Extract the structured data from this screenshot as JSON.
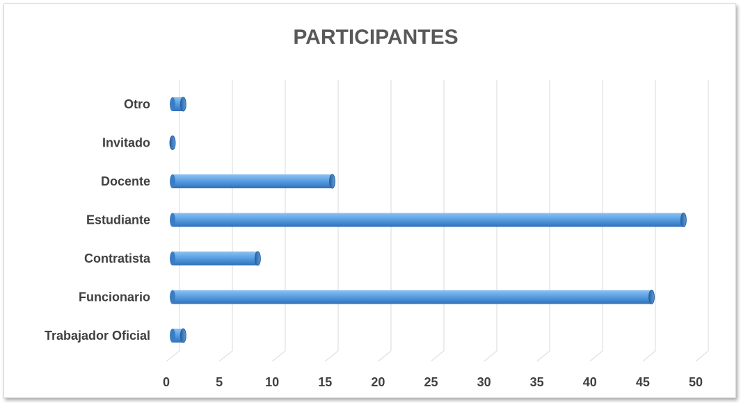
{
  "chart_data": {
    "type": "bar",
    "orientation": "horizontal",
    "title": "PARTICIPANTES",
    "xlabel": "",
    "ylabel": "",
    "categories": [
      "Trabajador Oficial",
      "Funcionario",
      "Contratista",
      "Estudiante",
      "Docente",
      "Invitado",
      "Otro"
    ],
    "values": [
      1,
      45,
      8,
      48,
      15,
      0,
      1
    ],
    "xlim": [
      0,
      50
    ],
    "xticks": [
      "0",
      "5",
      "10",
      "15",
      "20",
      "25",
      "30",
      "35",
      "40",
      "45",
      "50"
    ],
    "grid": true,
    "legend": "none",
    "bar_color": "#4f94dc",
    "bar_edge_color": "#2f6aa8"
  }
}
